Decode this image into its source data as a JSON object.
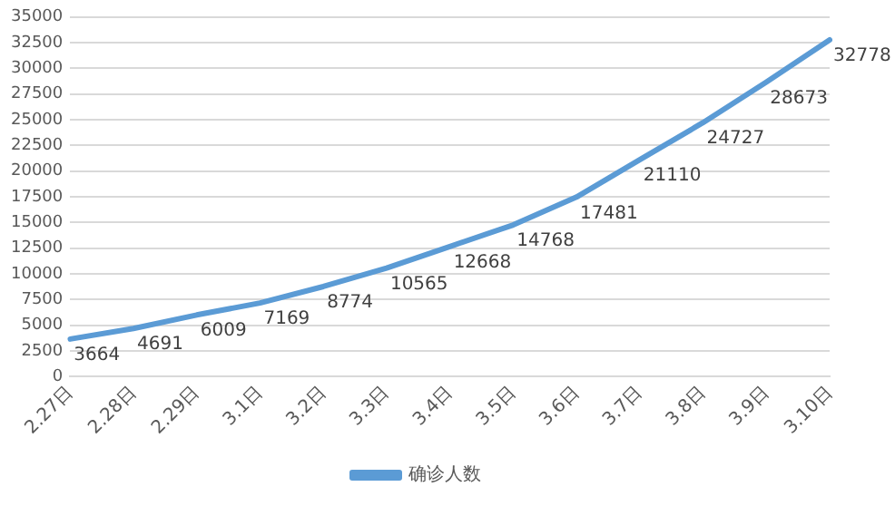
{
  "chart_data": {
    "type": "line",
    "categories": [
      "2.27日",
      "2.28日",
      "2.29日",
      "3.1日",
      "3.2日",
      "3.3日",
      "3.4日",
      "3.5日",
      "3.6日",
      "3.7日",
      "3.8日",
      "3.9日",
      "3.10日"
    ],
    "series": [
      {
        "name": "确诊人数",
        "color": "#5b9bd5",
        "values": [
          3664,
          4691,
          6009,
          7169,
          8774,
          10565,
          12668,
          14768,
          17481,
          21110,
          24727,
          28673,
          32778
        ]
      }
    ],
    "ylim": [
      0,
      35000
    ],
    "yticks": [
      0,
      2500,
      5000,
      7500,
      10000,
      12500,
      15000,
      17500,
      20000,
      22500,
      25000,
      27500,
      30000,
      32500,
      35000
    ],
    "grid": "y",
    "legend": "bottom",
    "marker": "none",
    "line_style": "solid",
    "data_labels": true
  }
}
